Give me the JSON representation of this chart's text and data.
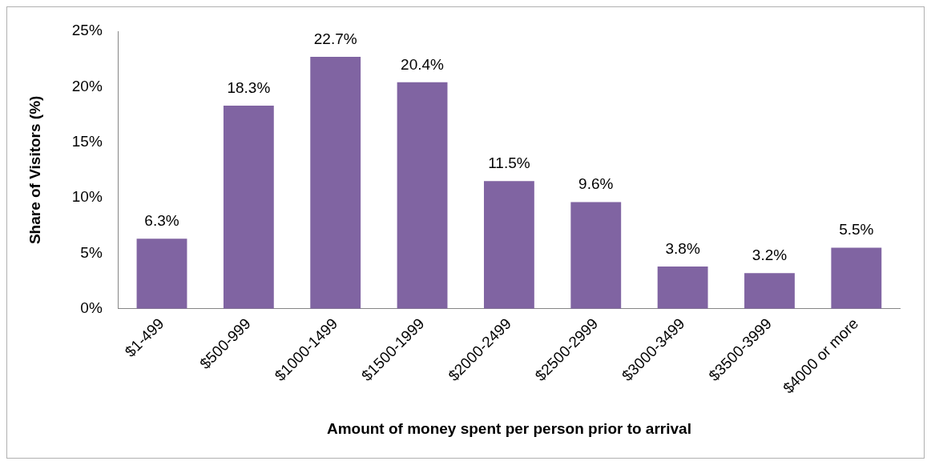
{
  "chart_data": {
    "type": "bar",
    "xlabel": "Amount of money spent per person prior to arrival",
    "ylabel": "Share of Visitors (%)",
    "categories": [
      "$1-499",
      "$500-999",
      "$1000-1499",
      "$1500-1999",
      "$2000-2499",
      "$2500-2999",
      "$3000-3499",
      "$3500-3999",
      "$4000 or more"
    ],
    "values": [
      6.3,
      18.3,
      22.7,
      20.4,
      11.5,
      9.6,
      3.8,
      3.2,
      5.5
    ],
    "value_labels": [
      "6.3%",
      "18.3%",
      "22.7%",
      "20.4%",
      "11.5%",
      "9.6%",
      "3.8%",
      "3.2%",
      "5.5%"
    ],
    "color": "#8064a2",
    "ylim": [
      0,
      25
    ],
    "yticks": [
      {
        "value": 0,
        "label": "0%"
      },
      {
        "value": 5,
        "label": "5%"
      },
      {
        "value": 10,
        "label": "10%"
      },
      {
        "value": 15,
        "label": "15%"
      },
      {
        "value": 20,
        "label": "20%"
      },
      {
        "value": 25,
        "label": "25%"
      }
    ],
    "grid": false,
    "legend": false
  }
}
